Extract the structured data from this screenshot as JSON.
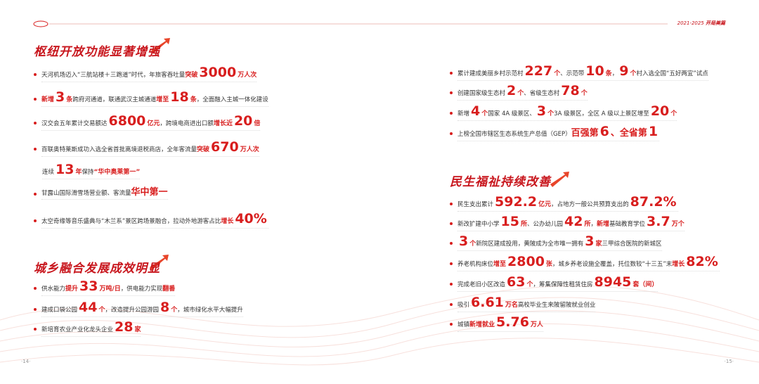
{
  "header": {
    "years": "2021-2025",
    "title": "开局美篇"
  },
  "pages": [
    "·14·",
    "·15·"
  ],
  "sections": [
    {
      "title": "枢纽开放功能显著增强",
      "items": [
        [
          "天河机场迈入“三航站楼＋三跑道”时代，年旅客吞吐量",
          "突破",
          "3000",
          "万人次"
        ],
        [
          "新增",
          "3",
          "条",
          "跨府河通道，联通武汉主城通道",
          "增至",
          "18",
          "条",
          "，全面融入主城一体化建设"
        ],
        [
          "汉交会五年累计交易额达",
          "6800",
          "亿元",
          "，跨境电商进出口额",
          "增长近",
          "20",
          "倍"
        ],
        [
          "百联奥特莱斯成功入选全省首批离境退税商店，全年客流量",
          "突破",
          "670",
          "万人次"
        ],
        [
          "连续",
          "13",
          "年",
          "保持",
          "“华中奥莱第一”"
        ],
        [
          "甘露山国际滑雪场营业额、客流量",
          "华中第一"
        ],
        [
          "太空奇缘等音乐盛典与“木兰系”景区跨场景融合，拉动外地游客占比",
          "增长",
          "40%"
        ]
      ]
    },
    {
      "title": "城乡融合发展成效明显",
      "items": [
        [
          "供水能力",
          "提升",
          "33",
          "万吨/日",
          "，供电能力实现",
          "翻番"
        ],
        [
          "建成口袋公园",
          "44",
          "个",
          "，改造提升公园游园",
          "8",
          "个",
          "，城市绿化水平大幅提升"
        ],
        [
          "新培育农业产业化龙头企业",
          "28",
          "家"
        ]
      ]
    },
    {
      "items": [
        [
          "累计建成美丽乡村示范村",
          "227",
          "个",
          "、示范带",
          "10",
          "条",
          "，",
          "9",
          "个",
          "村入选全国“五好两宜”试点"
        ],
        [
          "创建国家级生态村",
          "2",
          "个",
          "、省级生态村",
          "78",
          "个"
        ],
        [
          "新增",
          "4",
          "个",
          "国家 4A 级景区、",
          "3",
          "个",
          "3A 级景区，全区 A 级以上景区增至",
          "20",
          "个"
        ],
        [
          "上榜全国市辖区生态系统生产总值（GEP）",
          "百强第",
          "6",
          "、全省第",
          "1"
        ]
      ]
    },
    {
      "title": "民生福祉持续改善",
      "items": [
        [
          "民生支出累计",
          "592.2",
          "亿元",
          "，占地方一般公共预算支出的",
          "87.2%"
        ],
        [
          "新改扩建中小学",
          "15",
          "所",
          "、公办幼儿园",
          "42",
          "所",
          "，",
          "新增",
          "基础教育学位",
          "3.7",
          "万个"
        ],
        [
          "3",
          "个",
          "新院区建成投用，黄陂成为全市唯一拥有",
          "3",
          "家",
          "三甲综合医院的新城区"
        ],
        [
          "养老机构床位",
          "增至",
          "2800",
          "张",
          "，城乡养老设施全覆盖，托位数较“十三五”末",
          "增长",
          "82%"
        ],
        [
          "完成老旧小区改造",
          "63",
          "个",
          "，筹集保障性租赁住房",
          "8945",
          "套（间）"
        ],
        [
          "吸引",
          "6.61",
          "万名",
          "高校毕业生来陂留陂就业创业"
        ],
        [
          "城镇",
          "新增就业",
          "5.76",
          "万人"
        ]
      ]
    }
  ]
}
